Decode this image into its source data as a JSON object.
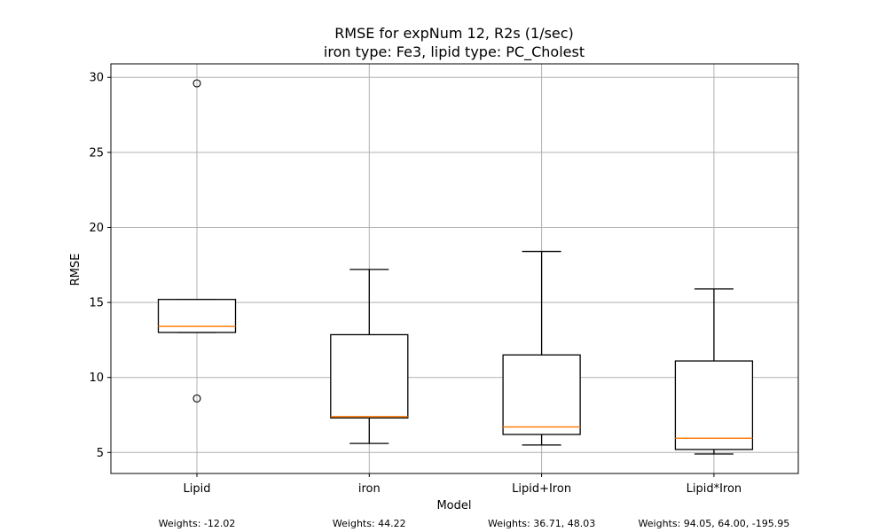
{
  "chart_data": {
    "type": "box",
    "title_lines": [
      "RMSE for expNum 12, R2s (1/sec)",
      "iron type: Fe3, lipid type: PC_Cholest"
    ],
    "xlabel": "Model",
    "ylabel": "RMSE",
    "ylim": [
      3.6,
      30.9
    ],
    "yticks": [
      5,
      10,
      15,
      20,
      25,
      30
    ],
    "grid": true,
    "categories": [
      "Lipid",
      "iron",
      "Lipid+Iron",
      "Lipid*Iron"
    ],
    "boxes": [
      {
        "whisker_low": 13.0,
        "q1": 13.0,
        "median": 13.4,
        "q3": 15.2,
        "whisker_high": 15.2,
        "outliers": [
          29.6,
          8.6
        ]
      },
      {
        "whisker_low": 5.6,
        "q1": 7.3,
        "median": 7.4,
        "q3": 12.85,
        "whisker_high": 17.2,
        "outliers": []
      },
      {
        "whisker_low": 5.5,
        "q1": 6.2,
        "median": 6.7,
        "q3": 11.5,
        "whisker_high": 18.4,
        "outliers": []
      },
      {
        "whisker_low": 4.9,
        "q1": 5.2,
        "median": 5.95,
        "q3": 11.1,
        "whisker_high": 15.9,
        "outliers": []
      }
    ],
    "annotations": [
      "Weights: -12.02",
      "Weights: 44.22",
      "Weights: 36.71, 48.03",
      "Weights: 94.05, 64.00, -195.95"
    ],
    "colors": {
      "box": "#000000",
      "median": "#ff7f0e",
      "grid": "#b0b0b0"
    }
  }
}
